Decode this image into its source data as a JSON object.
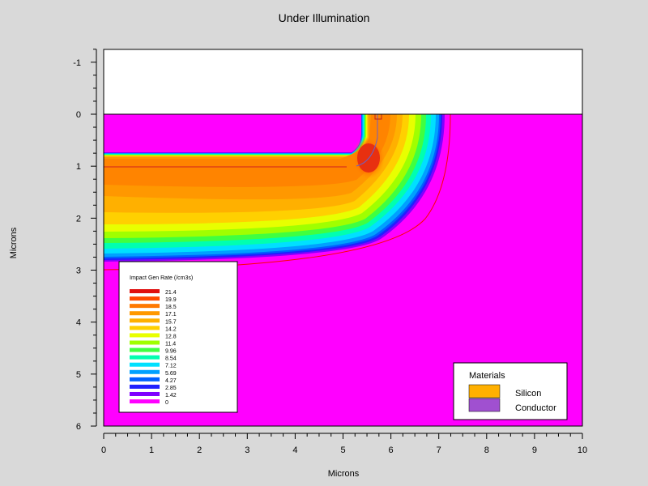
{
  "chart_data": {
    "type": "heatmap",
    "title": "Under Illumination",
    "xlabel": "Microns",
    "ylabel": "Microns",
    "xlim": [
      0,
      10
    ],
    "ylim": [
      6,
      -1.25
    ],
    "y_inverted": true,
    "x_ticks": [
      "0",
      "1",
      "2",
      "3",
      "4",
      "5",
      "6",
      "7",
      "8",
      "9",
      "10"
    ],
    "y_ticks": [
      "-1",
      "0",
      "1",
      "2",
      "3",
      "4",
      "5",
      "6"
    ],
    "colorbar": {
      "title": "Impact Gen Rate (/cm3s)",
      "levels": [
        "21.4",
        "19.9",
        "18.5",
        "17.1",
        "15.7",
        "14.2",
        "12.8",
        "11.4",
        "9.96",
        "8.54",
        "7.12",
        "5.69",
        "4.27",
        "2.85",
        "1.42",
        "0"
      ],
      "colors": [
        "#e01010",
        "#ff4a00",
        "#ff7800",
        "#ff9800",
        "#ffb000",
        "#ffd000",
        "#e8ff00",
        "#a0ff00",
        "#40ff40",
        "#00ffb0",
        "#00e0ff",
        "#00a0ff",
        "#0060ff",
        "#2020ff",
        "#8000ff",
        "#ff00ff"
      ]
    },
    "materials": {
      "title": "Materials",
      "items": [
        {
          "name": "Silicon",
          "color": "#ffb000"
        },
        {
          "name": "Conductor",
          "color": "#a050d0"
        }
      ]
    }
  }
}
